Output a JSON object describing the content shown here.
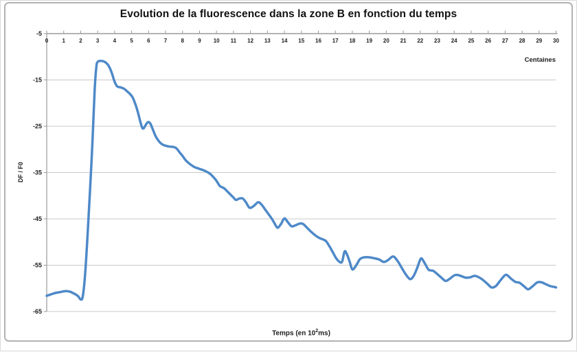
{
  "window": {
    "background_color": "#ffffff",
    "outer_border_color": "#d8d8d8",
    "frame_border_color": "#b2b2b2"
  },
  "chart_data": {
    "type": "line",
    "title": "Evolution de la fluorescence dans la zone B en fonction du temps",
    "xlabel": "Temps (en 10²ms)",
    "xlabel_parts": {
      "prefix": "Temps (en 10",
      "superscript": "2",
      "suffix": "ms)"
    },
    "ylabel": "DF / F0",
    "x_unit_note": "Centaines",
    "xlim": [
      0,
      30
    ],
    "ylim": [
      -65,
      -5
    ],
    "x_ticks": [
      0,
      1,
      2,
      3,
      4,
      5,
      6,
      7,
      8,
      9,
      10,
      11,
      12,
      13,
      14,
      15,
      16,
      17,
      18,
      19,
      20,
      21,
      22,
      23,
      24,
      25,
      26,
      27,
      28,
      29,
      30
    ],
    "y_ticks": [
      -5,
      -15,
      -25,
      -35,
      -45,
      -55,
      -65
    ],
    "axis_position": "top",
    "grid": "horizontal",
    "legend": "none",
    "line_color": "#4e89c8",
    "gridline_color": "#c9c9c9",
    "axis_color": "#9a9a9a",
    "text_color": "#1c1c1c",
    "series": [
      {
        "points": [
          [
            0,
            -61.6
          ],
          [
            0.25,
            -61.3
          ],
          [
            0.5,
            -61.0
          ],
          [
            0.8,
            -60.8
          ],
          [
            1.1,
            -60.6
          ],
          [
            1.35,
            -60.7
          ],
          [
            1.6,
            -61.1
          ],
          [
            1.85,
            -61.7
          ],
          [
            2.0,
            -62.4
          ],
          [
            2.12,
            -61.8
          ],
          [
            2.25,
            -57.5
          ],
          [
            2.4,
            -49.0
          ],
          [
            2.55,
            -39.0
          ],
          [
            2.7,
            -28.0
          ],
          [
            2.82,
            -17.5
          ],
          [
            2.92,
            -12.3
          ],
          [
            3.0,
            -11.1
          ],
          [
            3.2,
            -10.9
          ],
          [
            3.42,
            -11.1
          ],
          [
            3.6,
            -11.7
          ],
          [
            3.75,
            -12.7
          ],
          [
            3.88,
            -14.0
          ],
          [
            4.0,
            -15.4
          ],
          [
            4.15,
            -16.4
          ],
          [
            4.35,
            -16.6
          ],
          [
            4.55,
            -16.9
          ],
          [
            4.75,
            -17.5
          ],
          [
            4.9,
            -18.0
          ],
          [
            5.05,
            -18.7
          ],
          [
            5.2,
            -20.0
          ],
          [
            5.35,
            -21.7
          ],
          [
            5.5,
            -23.8
          ],
          [
            5.62,
            -25.3
          ],
          [
            5.72,
            -25.4
          ],
          [
            5.85,
            -24.6
          ],
          [
            5.97,
            -24.1
          ],
          [
            6.1,
            -24.4
          ],
          [
            6.25,
            -25.7
          ],
          [
            6.42,
            -27.2
          ],
          [
            6.6,
            -28.2
          ],
          [
            6.8,
            -28.9
          ],
          [
            7.0,
            -29.2
          ],
          [
            7.25,
            -29.4
          ],
          [
            7.5,
            -29.5
          ],
          [
            7.65,
            -29.8
          ],
          [
            7.82,
            -30.6
          ],
          [
            8.0,
            -31.4
          ],
          [
            8.2,
            -32.4
          ],
          [
            8.45,
            -33.2
          ],
          [
            8.7,
            -33.8
          ],
          [
            9.0,
            -34.2
          ],
          [
            9.3,
            -34.6
          ],
          [
            9.6,
            -35.2
          ],
          [
            9.8,
            -35.9
          ],
          [
            10.0,
            -36.8
          ],
          [
            10.2,
            -37.9
          ],
          [
            10.45,
            -38.4
          ],
          [
            10.7,
            -39.3
          ],
          [
            11.0,
            -40.4
          ],
          [
            11.15,
            -40.9
          ],
          [
            11.35,
            -40.6
          ],
          [
            11.55,
            -40.6
          ],
          [
            11.75,
            -41.5
          ],
          [
            11.95,
            -42.6
          ],
          [
            12.2,
            -42.2
          ],
          [
            12.45,
            -41.4
          ],
          [
            12.65,
            -41.9
          ],
          [
            12.85,
            -42.9
          ],
          [
            13.05,
            -43.9
          ],
          [
            13.3,
            -45.2
          ],
          [
            13.5,
            -46.5
          ],
          [
            13.62,
            -46.9
          ],
          [
            13.8,
            -46.1
          ],
          [
            14.0,
            -44.9
          ],
          [
            14.2,
            -45.7
          ],
          [
            14.42,
            -46.6
          ],
          [
            14.65,
            -46.4
          ],
          [
            14.9,
            -46.0
          ],
          [
            15.1,
            -46.1
          ],
          [
            15.3,
            -46.8
          ],
          [
            15.55,
            -47.7
          ],
          [
            15.8,
            -48.5
          ],
          [
            16.05,
            -49.1
          ],
          [
            16.25,
            -49.4
          ],
          [
            16.45,
            -49.8
          ],
          [
            16.65,
            -50.9
          ],
          [
            16.85,
            -52.2
          ],
          [
            17.05,
            -53.5
          ],
          [
            17.25,
            -54.3
          ],
          [
            17.4,
            -54.2
          ],
          [
            17.55,
            -52.0
          ],
          [
            17.7,
            -52.8
          ],
          [
            17.85,
            -54.3
          ],
          [
            18.0,
            -55.9
          ],
          [
            18.2,
            -55.2
          ],
          [
            18.45,
            -53.7
          ],
          [
            18.7,
            -53.3
          ],
          [
            19.0,
            -53.3
          ],
          [
            19.3,
            -53.5
          ],
          [
            19.6,
            -53.8
          ],
          [
            19.85,
            -54.3
          ],
          [
            20.1,
            -53.9
          ],
          [
            20.4,
            -53.1
          ],
          [
            20.65,
            -54.0
          ],
          [
            20.9,
            -55.5
          ],
          [
            21.15,
            -57.0
          ],
          [
            21.4,
            -58.0
          ],
          [
            21.6,
            -57.4
          ],
          [
            21.8,
            -55.8
          ],
          [
            22.0,
            -53.8
          ],
          [
            22.1,
            -53.6
          ],
          [
            22.3,
            -54.8
          ],
          [
            22.5,
            -56.0
          ],
          [
            22.75,
            -56.2
          ],
          [
            23.0,
            -56.9
          ],
          [
            23.25,
            -57.7
          ],
          [
            23.5,
            -58.4
          ],
          [
            23.75,
            -57.9
          ],
          [
            24.0,
            -57.2
          ],
          [
            24.2,
            -57.1
          ],
          [
            24.45,
            -57.4
          ],
          [
            24.7,
            -57.7
          ],
          [
            24.95,
            -57.6
          ],
          [
            25.2,
            -57.3
          ],
          [
            25.45,
            -57.6
          ],
          [
            25.7,
            -58.2
          ],
          [
            25.95,
            -59.0
          ],
          [
            26.2,
            -59.8
          ],
          [
            26.45,
            -59.5
          ],
          [
            26.7,
            -58.4
          ],
          [
            26.95,
            -57.3
          ],
          [
            27.1,
            -57.1
          ],
          [
            27.35,
            -57.9
          ],
          [
            27.6,
            -58.6
          ],
          [
            27.85,
            -58.8
          ],
          [
            28.1,
            -59.5
          ],
          [
            28.35,
            -60.2
          ],
          [
            28.6,
            -59.6
          ],
          [
            28.9,
            -58.7
          ],
          [
            29.15,
            -58.7
          ],
          [
            29.4,
            -59.1
          ],
          [
            29.65,
            -59.5
          ],
          [
            29.9,
            -59.7
          ],
          [
            30.0,
            -59.8
          ]
        ]
      }
    ]
  }
}
